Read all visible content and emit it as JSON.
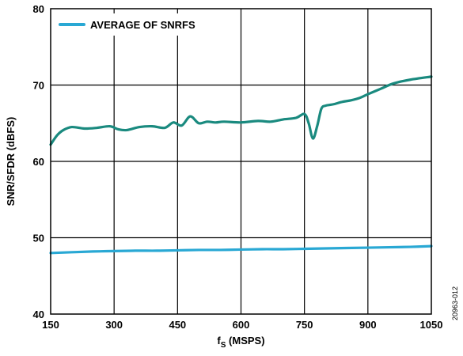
{
  "chart_data": {
    "type": "line",
    "title": "",
    "xlabel": "f",
    "xlabel_sub": "S",
    "xlabel_suffix": " (MSPS)",
    "ylabel": "SNR/SFDR (dBFS)",
    "xlim": [
      150,
      1050
    ],
    "ylim": [
      40,
      80
    ],
    "x_ticks": [
      "150",
      "300",
      "450",
      "600",
      "750",
      "900",
      "1050"
    ],
    "y_ticks": [
      "40",
      "50",
      "60",
      "70",
      "80"
    ],
    "grid": true,
    "legend_position": "top-left",
    "series": [
      {
        "name": "AVERAGE OF SNRFS",
        "in_legend": true,
        "color": "#29a8d4",
        "x": [
          150,
          200,
          250,
          300,
          350,
          400,
          450,
          500,
          550,
          600,
          650,
          700,
          750,
          800,
          850,
          900,
          950,
          1000,
          1050
        ],
        "y": [
          48.0,
          48.1,
          48.2,
          48.25,
          48.3,
          48.3,
          48.35,
          48.4,
          48.4,
          48.45,
          48.5,
          48.5,
          48.55,
          48.6,
          48.65,
          48.7,
          48.75,
          48.8,
          48.9
        ]
      },
      {
        "name": "",
        "in_legend": false,
        "color": "#1a8a7f",
        "x": [
          150,
          165,
          180,
          200,
          230,
          260,
          290,
          310,
          330,
          360,
          390,
          420,
          440,
          460,
          480,
          500,
          520,
          540,
          560,
          600,
          640,
          670,
          700,
          730,
          750,
          760,
          770,
          780,
          790,
          800,
          810,
          820,
          840,
          860,
          880,
          900,
          930,
          960,
          1000,
          1050
        ],
        "y": [
          62.2,
          63.4,
          64.1,
          64.5,
          64.3,
          64.4,
          64.6,
          64.2,
          64.1,
          64.5,
          64.6,
          64.4,
          65.1,
          64.7,
          65.9,
          65.0,
          65.2,
          65.1,
          65.2,
          65.1,
          65.3,
          65.2,
          65.5,
          65.7,
          66.2,
          65.0,
          63.0,
          64.6,
          66.9,
          67.3,
          67.4,
          67.5,
          67.8,
          68.0,
          68.3,
          68.8,
          69.5,
          70.2,
          70.7,
          71.1
        ]
      }
    ]
  },
  "figure_id": "20963-012"
}
